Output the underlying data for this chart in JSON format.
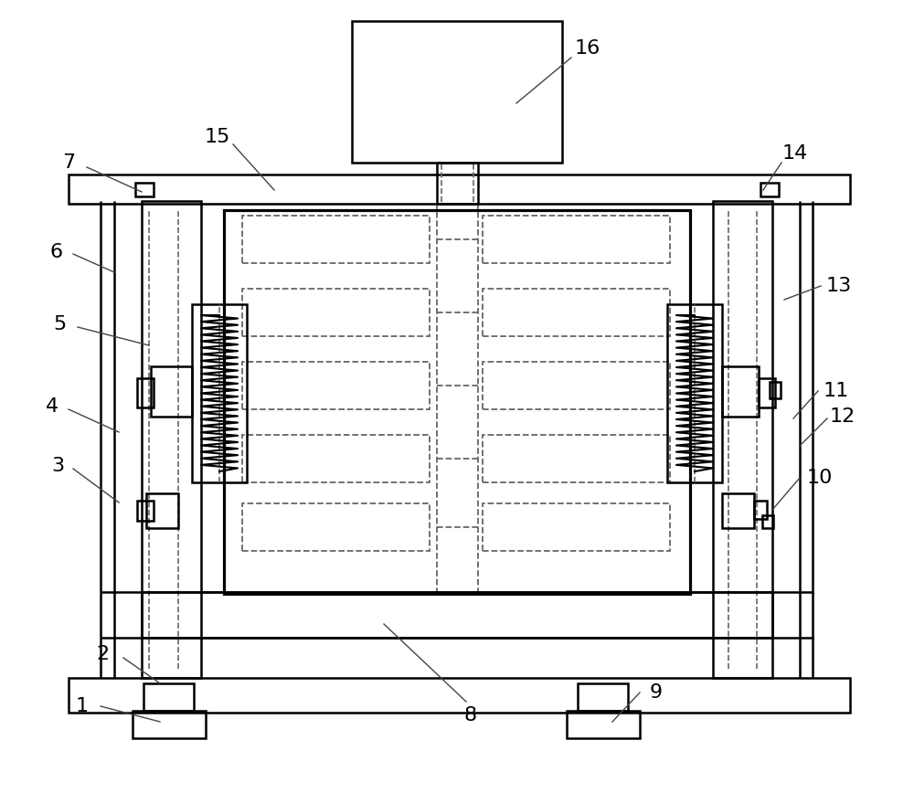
{
  "bg_color": "#ffffff",
  "line_color": "#000000",
  "dashed_color": "#666666",
  "lw": 1.8,
  "fig_w": 10.0,
  "fig_h": 8.68
}
